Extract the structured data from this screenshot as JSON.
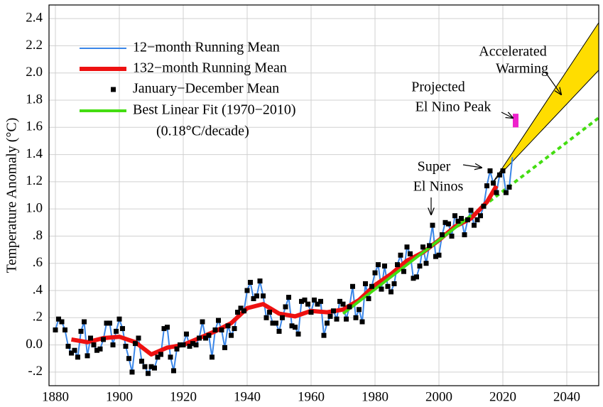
{
  "chart_data": {
    "type": "line",
    "y_label": "Temperature Anomaly (°C)",
    "xlim": [
      1878,
      2050
    ],
    "xticks": [
      1880,
      1900,
      1920,
      1940,
      1960,
      1980,
      2000,
      2020,
      2040
    ],
    "ylim": [
      -0.3,
      2.5
    ],
    "yticks": [
      {
        "value": -0.2,
        "label": "-.2"
      },
      {
        "value": 0,
        "label": "0.0"
      },
      {
        "value": 0.2,
        "label": ".2"
      },
      {
        "value": 0.4,
        "label": ".4"
      },
      {
        "value": 0.6,
        "label": ".6"
      },
      {
        "value": 0.8,
        "label": ".8"
      },
      {
        "value": 1.0,
        "label": "1.0"
      },
      1.2,
      1.4,
      1.6,
      1.8,
      {
        "value": 2.0,
        "label": "2.0"
      },
      2.2,
      2.4
    ],
    "grid": true,
    "x": [
      1880,
      1881,
      1882,
      1883,
      1884,
      1885,
      1886,
      1887,
      1888,
      1889,
      1890,
      1891,
      1892,
      1893,
      1894,
      1895,
      1896,
      1897,
      1898,
      1899,
      1900,
      1901,
      1902,
      1903,
      1904,
      1905,
      1906,
      1907,
      1908,
      1909,
      1910,
      1911,
      1912,
      1913,
      1914,
      1915,
      1916,
      1917,
      1918,
      1919,
      1920,
      1921,
      1922,
      1923,
      1924,
      1925,
      1926,
      1927,
      1928,
      1929,
      1930,
      1931,
      1932,
      1933,
      1934,
      1935,
      1936,
      1937,
      1938,
      1939,
      1940,
      1941,
      1942,
      1943,
      1944,
      1945,
      1946,
      1947,
      1948,
      1949,
      1950,
      1951,
      1952,
      1953,
      1954,
      1955,
      1956,
      1957,
      1958,
      1959,
      1960,
      1961,
      1962,
      1963,
      1964,
      1965,
      1966,
      1967,
      1968,
      1969,
      1970,
      1971,
      1972,
      1973,
      1974,
      1975,
      1976,
      1977,
      1978,
      1979,
      1980,
      1981,
      1982,
      1983,
      1984,
      1985,
      1986,
      1987,
      1988,
      1989,
      1990,
      1991,
      1992,
      1993,
      1994,
      1995,
      1996,
      1997,
      1998,
      1999,
      2000,
      2001,
      2002,
      2003,
      2004,
      2005,
      2006,
      2007,
      2008,
      2009,
      2010,
      2011,
      2012,
      2013,
      2014,
      2015,
      2016,
      2017,
      2018,
      2019,
      2020,
      2021,
      2022,
      2023
    ],
    "series": [
      {
        "name": "12−month Running Mean",
        "color": "#3a86e8",
        "width": 2,
        "style": "line",
        "values": [
          0.11,
          0.19,
          0.17,
          0.11,
          -0.01,
          -0.06,
          -0.04,
          -0.09,
          0.1,
          0.17,
          -0.08,
          0.05,
          0.0,
          -0.04,
          -0.03,
          0.04,
          0.16,
          0.16,
          0.0,
          0.1,
          0.19,
          0.12,
          -0.01,
          -0.1,
          -0.2,
          0.01,
          0.05,
          -0.12,
          -0.16,
          -0.21,
          -0.16,
          -0.17,
          -0.09,
          -0.07,
          0.12,
          0.13,
          -0.09,
          -0.19,
          -0.03,
          0.0,
          0.0,
          0.08,
          -0.01,
          0.01,
          0.0,
          0.05,
          0.17,
          0.05,
          0.07,
          -0.09,
          0.11,
          0.18,
          0.11,
          -0.02,
          0.14,
          0.07,
          0.12,
          0.24,
          0.27,
          0.25,
          0.4,
          0.46,
          0.34,
          0.36,
          0.47,
          0.36,
          0.2,
          0.24,
          0.16,
          0.16,
          0.1,
          0.2,
          0.28,
          0.35,
          0.14,
          0.13,
          0.08,
          0.32,
          0.33,
          0.3,
          0.24,
          0.33,
          0.3,
          0.32,
          0.07,
          0.16,
          0.21,
          0.25,
          0.19,
          0.32,
          0.3,
          0.19,
          0.28,
          0.43,
          0.2,
          0.26,
          0.17,
          0.45,
          0.34,
          0.43,
          0.53,
          0.59,
          0.41,
          0.58,
          0.43,
          0.39,
          0.45,
          0.59,
          0.66,
          0.54,
          0.72,
          0.67,
          0.49,
          0.5,
          0.58,
          0.72,
          0.6,
          0.73,
          0.88,
          0.65,
          0.66,
          0.81,
          0.9,
          0.89,
          0.8,
          0.95,
          0.91,
          0.93,
          0.81,
          0.92,
          0.99,
          0.88,
          0.92,
          0.95,
          1.02,
          1.17,
          1.28,
          1.19,
          1.12,
          1.25,
          1.28,
          1.12,
          1.16,
          1.38
        ]
      },
      {
        "name": "132−month Running Mean",
        "color": "#ee1111",
        "width": 6,
        "style": "line",
        "x": [
          1885,
          1890,
          1895,
          1900,
          1905,
          1910,
          1915,
          1920,
          1925,
          1930,
          1935,
          1940,
          1945,
          1950,
          1955,
          1960,
          1965,
          1970,
          1975,
          1980,
          1985,
          1990,
          1995,
          2000,
          2005,
          2010,
          2015,
          2018
        ],
        "values": [
          0.04,
          0.02,
          0.05,
          0.06,
          0.02,
          -0.07,
          -0.02,
          0.0,
          0.05,
          0.1,
          0.16,
          0.27,
          0.3,
          0.23,
          0.21,
          0.25,
          0.24,
          0.26,
          0.33,
          0.44,
          0.52,
          0.62,
          0.68,
          0.77,
          0.87,
          0.93,
          1.05,
          1.17
        ]
      },
      {
        "name": "January−December Mean",
        "color": "#000000",
        "style": "marker",
        "values": [
          0.11,
          0.19,
          0.17,
          0.11,
          -0.01,
          -0.06,
          -0.04,
          -0.09,
          0.1,
          0.17,
          -0.08,
          0.05,
          0.0,
          -0.04,
          -0.03,
          0.04,
          0.16,
          0.16,
          0.0,
          0.1,
          0.19,
          0.12,
          -0.01,
          -0.1,
          -0.2,
          0.01,
          0.05,
          -0.12,
          -0.16,
          -0.21,
          -0.16,
          -0.17,
          -0.09,
          -0.07,
          0.12,
          0.13,
          -0.09,
          -0.19,
          -0.03,
          0.0,
          0.0,
          0.08,
          -0.01,
          0.01,
          0.0,
          0.05,
          0.17,
          0.05,
          0.07,
          -0.09,
          0.11,
          0.18,
          0.11,
          -0.02,
          0.14,
          0.07,
          0.12,
          0.24,
          0.27,
          0.25,
          0.4,
          0.46,
          0.34,
          0.36,
          0.47,
          0.36,
          0.2,
          0.24,
          0.16,
          0.16,
          0.1,
          0.2,
          0.28,
          0.35,
          0.14,
          0.13,
          0.08,
          0.32,
          0.33,
          0.3,
          0.24,
          0.33,
          0.3,
          0.32,
          0.07,
          0.16,
          0.21,
          0.25,
          0.19,
          0.32,
          0.3,
          0.19,
          0.28,
          0.43,
          0.2,
          0.26,
          0.17,
          0.45,
          0.34,
          0.43,
          0.53,
          0.59,
          0.41,
          0.58,
          0.43,
          0.39,
          0.45,
          0.59,
          0.66,
          0.54,
          0.72,
          0.67,
          0.49,
          0.5,
          0.58,
          0.72,
          0.6,
          0.73,
          0.88,
          0.65,
          0.66,
          0.81,
          0.9,
          0.89,
          0.8,
          0.95,
          0.91,
          0.93,
          0.81,
          0.92,
          0.99,
          0.88,
          0.92,
          0.95,
          1.02,
          1.17,
          1.28,
          1.19,
          1.12,
          1.25,
          1.28,
          1.12,
          1.16,
          null
        ]
      },
      {
        "name": "Best Linear Fit (1970−2010)",
        "color": "#44dd11",
        "width": 4,
        "style": "line",
        "x": [
          1970,
          2010
        ],
        "values": [
          0.23,
          0.95
        ]
      },
      {
        "color": "#44dd11",
        "width": 4,
        "style": "line",
        "dash": true,
        "x": [
          2010,
          2050
        ],
        "values": [
          0.95,
          1.67
        ]
      }
    ],
    "legend_note": "(0.18°C/decade)",
    "wedge": {
      "x": [
        2017,
        2050
      ],
      "lower": [
        1.2,
        2.02
      ],
      "upper": [
        1.2,
        2.37
      ],
      "color": "#ffdd00"
    },
    "el_nino_peak": {
      "x": 2024,
      "low": 1.6,
      "high": 1.7,
      "color": "#ee22cc"
    },
    "annotations": [
      "Accelerated",
      "Warming",
      "Projected",
      "El Nino Peak",
      "Super",
      "El Ninos"
    ]
  }
}
